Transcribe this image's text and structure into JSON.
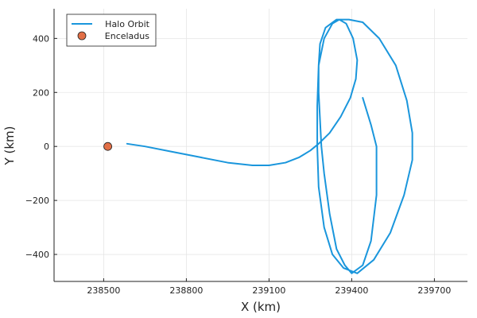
{
  "chart_data": {
    "type": "line",
    "title": "",
    "xlabel": "X (km)",
    "ylabel": "Y (km)",
    "xlim": [
      238320,
      239820
    ],
    "ylim": [
      -500,
      510
    ],
    "grid": true,
    "legend_position": "top-left",
    "x_ticks": [
      238500,
      238800,
      239100,
      239400,
      239700
    ],
    "x_tick_labels": [
      "238500",
      "238800",
      "239100",
      "239400",
      "239700"
    ],
    "y_ticks": [
      -400,
      -200,
      0,
      200,
      400
    ],
    "y_tick_labels": [
      "−400",
      "−200",
      "0",
      "200",
      "400"
    ],
    "series": [
      {
        "name": "Halo Orbit",
        "kind": "line",
        "color": "#1a96dc",
        "x": [
          238585,
          238650,
          238750,
          238850,
          238950,
          239040,
          239100,
          239160,
          239210,
          239250,
          239280,
          239320,
          239360,
          239395,
          239415,
          239420,
          239405,
          239380,
          239355,
          239330,
          239300,
          239280,
          239275,
          239275,
          239280,
          239300,
          239330,
          239370,
          239420,
          239480,
          239540,
          239590,
          239620,
          239620,
          239600,
          239560,
          239500,
          239440,
          239390,
          239345,
          239305,
          239285,
          239280,
          239280,
          239285,
          239290,
          239300,
          239320,
          239345,
          239375,
          239400,
          239440,
          239470,
          239490,
          239490,
          239470,
          239440
        ],
        "y": [
          10,
          0,
          -20,
          -40,
          -60,
          -70,
          -70,
          -60,
          -40,
          -15,
          10,
          50,
          110,
          180,
          250,
          320,
          400,
          455,
          470,
          455,
          400,
          300,
          150,
          0,
          -150,
          -300,
          -400,
          -450,
          -470,
          -420,
          -320,
          -180,
          -50,
          50,
          170,
          300,
          400,
          460,
          470,
          470,
          440,
          380,
          300,
          200,
          100,
          0,
          -100,
          -250,
          -380,
          -440,
          -470,
          -440,
          -350,
          -180,
          0,
          80,
          180
        ]
      },
      {
        "name": "Enceladus",
        "kind": "point",
        "color": "#e26f46",
        "x": [
          238515
        ],
        "y": [
          0
        ]
      }
    ]
  }
}
